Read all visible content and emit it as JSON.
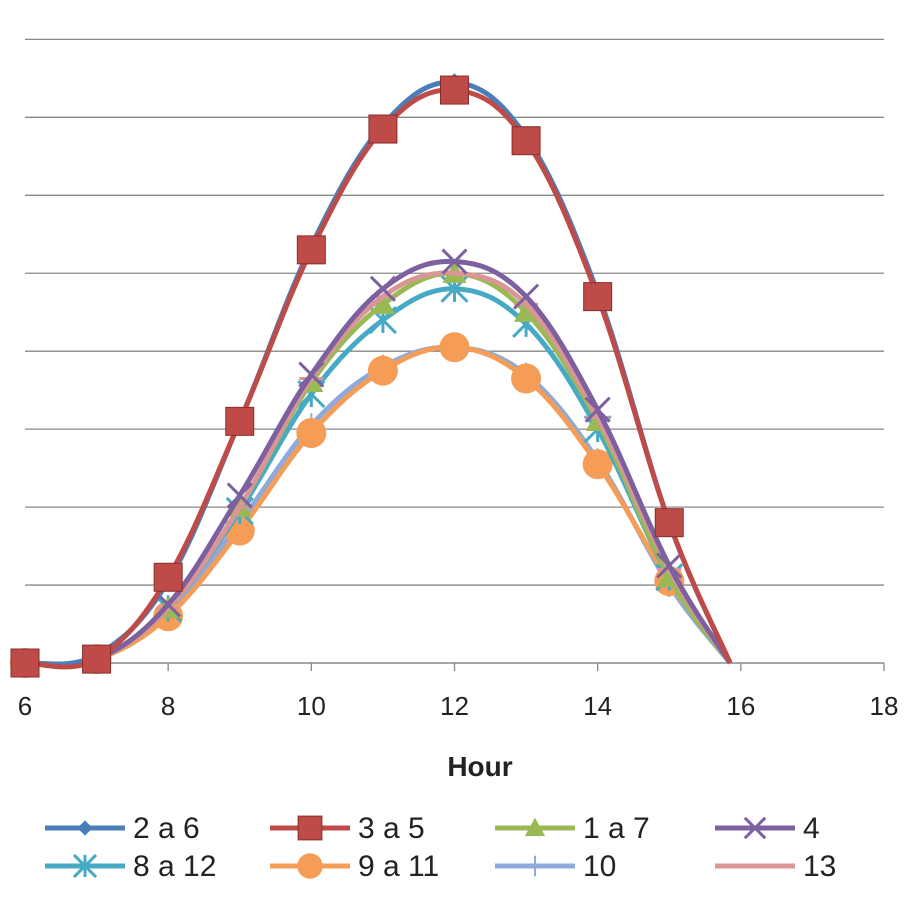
{
  "chart_data": {
    "type": "line",
    "smooth": true,
    "xlabel": "Hour",
    "ylabel": "",
    "title": "",
    "xlim": [
      6,
      18
    ],
    "x_ticks": [
      6,
      8,
      10,
      12,
      14,
      16,
      18
    ],
    "ylim": [
      0,
      8.3
    ],
    "y_gridlines": [
      1,
      2,
      3,
      4,
      5,
      6,
      7,
      8
    ],
    "y_tick_labels_visible": false,
    "grid": "horizontal",
    "legend_position": "bottom",
    "series": [
      {
        "name": "2 a 6",
        "color": "#4a7ebb",
        "marker": "diamond",
        "x": [
          6,
          7,
          8,
          9,
          10,
          11,
          12,
          13,
          14,
          15,
          15.85
        ],
        "y": [
          0,
          0.1,
          1.05,
          3.1,
          5.35,
          6.9,
          7.45,
          6.75,
          4.75,
          1.8,
          0
        ]
      },
      {
        "name": "3 a 5",
        "color": "#be4b48",
        "marker": "square",
        "x": [
          6,
          7,
          8,
          9,
          10,
          11,
          12,
          13,
          14,
          15,
          15.85
        ],
        "y": [
          0,
          0.05,
          1.1,
          3.1,
          5.3,
          6.85,
          7.35,
          6.7,
          4.7,
          1.8,
          0
        ]
      },
      {
        "name": "1 a 7",
        "color": "#98b954",
        "marker": "triangle",
        "x": [
          6,
          7,
          8,
          9,
          10,
          11,
          12,
          13,
          14,
          15,
          15.85
        ],
        "y": [
          0,
          0.05,
          0.7,
          2.0,
          3.6,
          4.6,
          5.0,
          4.5,
          3.1,
          1.1,
          0
        ]
      },
      {
        "name": "4",
        "color": "#7d60a0",
        "marker": "x",
        "x": [
          6,
          7,
          8,
          9,
          10,
          11,
          12,
          13,
          14,
          15,
          15.85
        ],
        "y": [
          0,
          0.05,
          0.75,
          2.15,
          3.7,
          4.8,
          5.15,
          4.7,
          3.25,
          1.25,
          0
        ]
      },
      {
        "name": "8 a 12",
        "color": "#46aac4",
        "marker": "star",
        "x": [
          6,
          7,
          8,
          9,
          10,
          11,
          12,
          13,
          14,
          15,
          15.85
        ],
        "y": [
          0,
          0.05,
          0.7,
          1.95,
          3.45,
          4.4,
          4.8,
          4.35,
          3.0,
          1.1,
          0
        ]
      },
      {
        "name": "9 a 11",
        "color": "#f59d56",
        "marker": "circle",
        "x": [
          6,
          7,
          8,
          9,
          10,
          11,
          12,
          13,
          14,
          15,
          15.85
        ],
        "y": [
          0,
          0.05,
          0.6,
          1.7,
          2.95,
          3.75,
          4.05,
          3.65,
          2.55,
          1.05,
          0
        ]
      },
      {
        "name": "10",
        "color": "#8ea9db",
        "marker": "plus",
        "x": [
          6,
          7,
          8,
          9,
          10,
          11,
          12,
          13,
          14,
          15,
          15.85
        ],
        "y": [
          0,
          0.05,
          0.65,
          1.8,
          3.05,
          3.8,
          4.05,
          3.7,
          2.6,
          1.0,
          0
        ]
      },
      {
        "name": "13",
        "color": "#d99694",
        "marker": "dash",
        "x": [
          6,
          7,
          8,
          9,
          10,
          11,
          12,
          13,
          14,
          15,
          15.85
        ],
        "y": [
          0,
          0.05,
          0.7,
          2.0,
          3.65,
          4.7,
          5.0,
          4.6,
          3.15,
          1.2,
          0
        ]
      }
    ]
  }
}
